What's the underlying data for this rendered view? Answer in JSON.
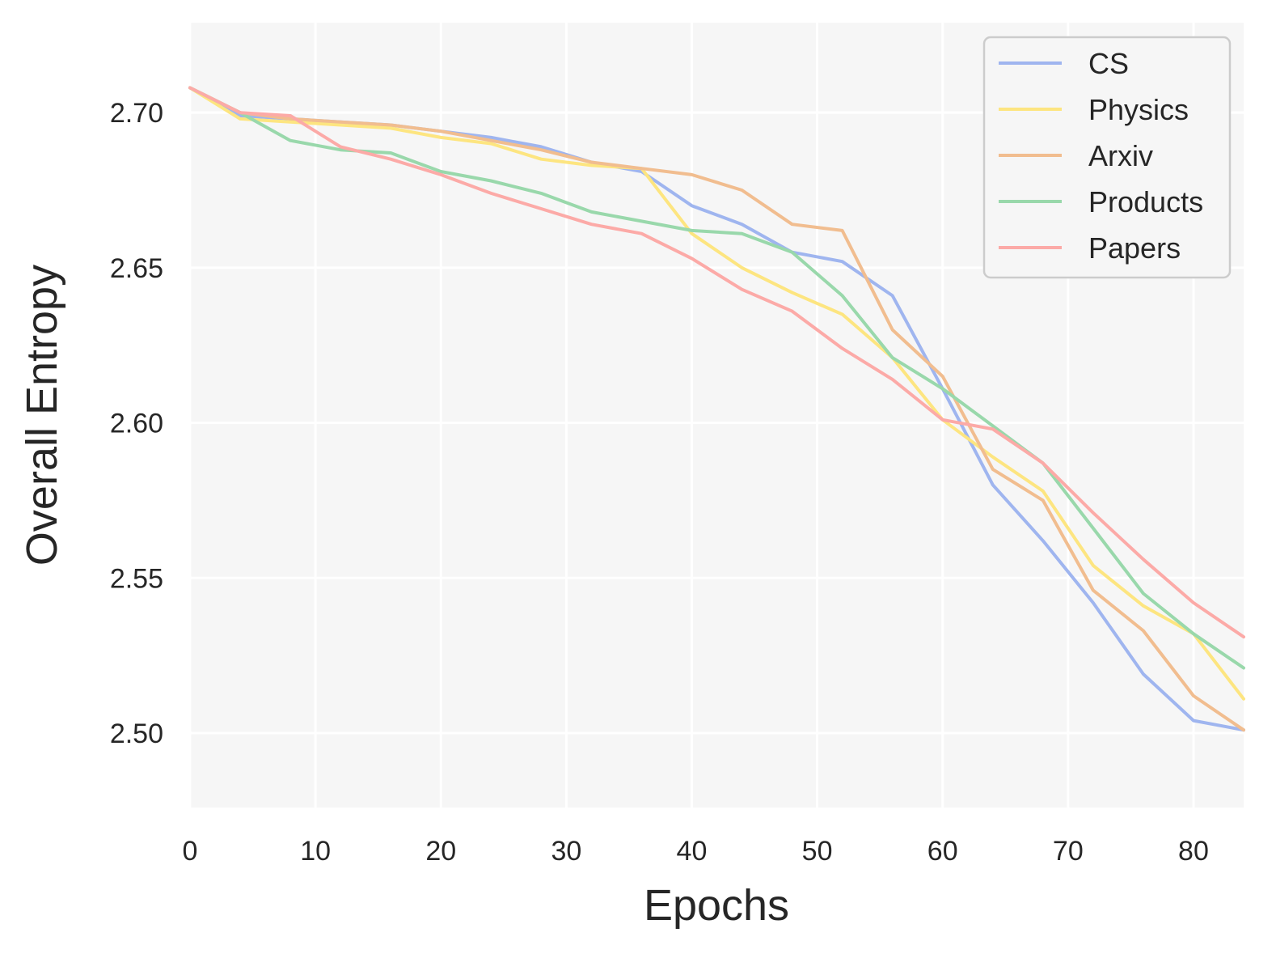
{
  "chart_data": {
    "type": "line",
    "xlabel": "Epochs",
    "ylabel": "Overall Entropy",
    "xlim": [
      0,
      84
    ],
    "ylim": [
      2.476,
      2.729
    ],
    "x_ticks": [
      0,
      10,
      20,
      30,
      40,
      50,
      60,
      70,
      80
    ],
    "x_tick_labels": [
      "0",
      "10",
      "20",
      "30",
      "40",
      "50",
      "60",
      "70",
      "80"
    ],
    "y_ticks": [
      2.5,
      2.55,
      2.6,
      2.65,
      2.7
    ],
    "y_tick_labels": [
      "2.50",
      "2.55",
      "2.60",
      "2.65",
      "2.70"
    ],
    "grid": true,
    "legend_position": "top-right",
    "x": [
      0,
      4,
      8,
      12,
      16,
      20,
      24,
      28,
      32,
      36,
      40,
      44,
      48,
      52,
      56,
      60,
      64,
      68,
      72,
      76,
      80,
      84
    ],
    "series": [
      {
        "name": "CS",
        "color": "#9fb5ef",
        "values": [
          2.708,
          2.699,
          2.698,
          2.697,
          2.696,
          2.694,
          2.692,
          2.689,
          2.684,
          2.681,
          2.67,
          2.664,
          2.655,
          2.652,
          2.641,
          2.611,
          2.58,
          2.562,
          2.542,
          2.519,
          2.504,
          2.501
        ]
      },
      {
        "name": "Physics",
        "color": "#fde580",
        "values": [
          2.708,
          2.698,
          2.697,
          2.696,
          2.695,
          2.692,
          2.69,
          2.685,
          2.683,
          2.682,
          2.661,
          2.65,
          2.642,
          2.635,
          2.621,
          2.601,
          2.589,
          2.578,
          2.554,
          2.541,
          2.532,
          2.511
        ]
      },
      {
        "name": "Arxiv",
        "color": "#f1bd8f",
        "values": [
          2.708,
          2.7,
          2.698,
          2.697,
          2.696,
          2.694,
          2.691,
          2.688,
          2.684,
          2.682,
          2.68,
          2.675,
          2.664,
          2.662,
          2.63,
          2.615,
          2.585,
          2.575,
          2.546,
          2.533,
          2.512,
          2.501
        ]
      },
      {
        "name": "Products",
        "color": "#99d8ab",
        "values": [
          2.708,
          2.7,
          2.691,
          2.688,
          2.687,
          2.681,
          2.678,
          2.674,
          2.668,
          2.665,
          2.662,
          2.661,
          2.655,
          2.641,
          2.621,
          2.611,
          2.599,
          2.587,
          2.566,
          2.545,
          2.532,
          2.521
        ]
      },
      {
        "name": "Papers",
        "color": "#fcaaa7",
        "values": [
          2.708,
          2.7,
          2.699,
          2.689,
          2.685,
          2.68,
          2.674,
          2.669,
          2.664,
          2.661,
          2.653,
          2.643,
          2.636,
          2.624,
          2.614,
          2.601,
          2.598,
          2.587,
          2.571,
          2.556,
          2.542,
          2.531
        ]
      }
    ]
  }
}
